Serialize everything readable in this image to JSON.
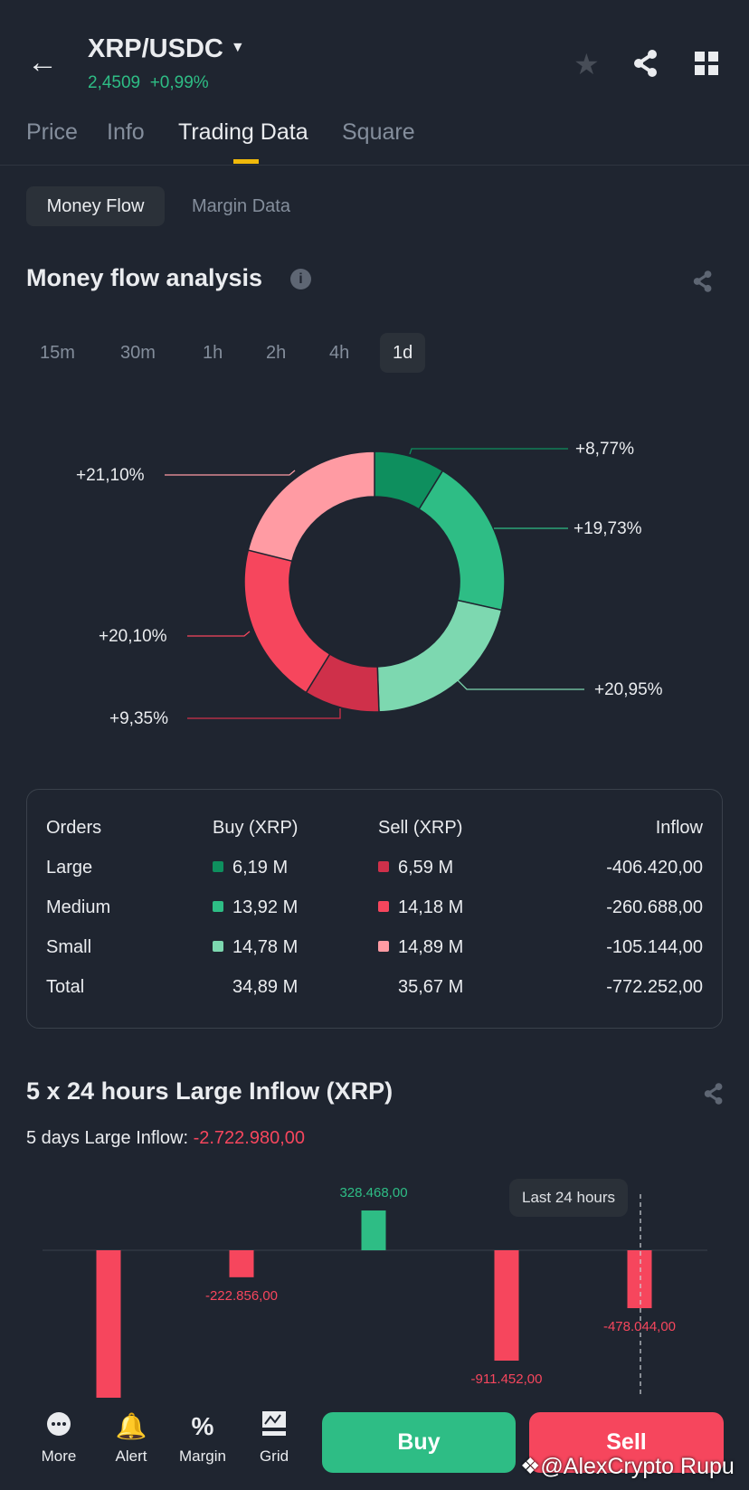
{
  "header": {
    "pair": "XRP/USDC",
    "price": "2,4509",
    "change": "+0,99%"
  },
  "tabs": [
    {
      "label": "Price"
    },
    {
      "label": "Info"
    },
    {
      "label": "Trading Data"
    },
    {
      "label": "Square"
    }
  ],
  "subtabs": [
    {
      "label": "Money Flow"
    },
    {
      "label": "Margin Data"
    }
  ],
  "analysis": {
    "title": "Money flow analysis",
    "intervals": [
      "15m",
      "30m",
      "1h",
      "2h",
      "4h",
      "1d"
    ],
    "active_interval": "1d"
  },
  "chart_data": [
    {
      "type": "pie",
      "donut": true,
      "categories": [
        "Large buy",
        "Medium buy",
        "Small buy",
        "Large sell",
        "Medium sell",
        "Small sell"
      ],
      "values": [
        8.77,
        19.73,
        20.95,
        9.35,
        20.1,
        21.1
      ],
      "labels": [
        "+8,77%",
        "+19,73%",
        "+20,95%",
        "+9,35%",
        "+20,10%",
        "+21,10%"
      ],
      "colors": [
        "#0e8f5e",
        "#2ebd85",
        "#7dd8b0",
        "#cf304a",
        "#f6465d",
        "#ff9ba3"
      ]
    },
    {
      "type": "bar",
      "title": "5 x 24 hours Large Inflow (XRP)",
      "values": [
        -1439096,
        -222856,
        328468,
        -911452,
        -478044
      ],
      "value_labels": [
        "",
        "-222.856,00",
        "328.468,00",
        "-911.452,00",
        "-478.044,00"
      ],
      "positive_color": "#2ebd85",
      "negative_color": "#f6465d",
      "tooltip": "Last 24 hours"
    }
  ],
  "table": {
    "headers": [
      "Orders",
      "Buy (XRP)",
      "Sell (XRP)",
      "Inflow"
    ],
    "rows": [
      {
        "order": "Large",
        "buy": "6,19 M",
        "sell": "6,59 M",
        "inflow": "-406.420,00",
        "buy_color": "#0e8f5e",
        "sell_color": "#cf304a"
      },
      {
        "order": "Medium",
        "buy": "13,92 M",
        "sell": "14,18 M",
        "inflow": "-260.688,00",
        "buy_color": "#2ebd85",
        "sell_color": "#f6465d"
      },
      {
        "order": "Small",
        "buy": "14,78 M",
        "sell": "14,89 M",
        "inflow": "-105.144,00",
        "buy_color": "#7dd8b0",
        "sell_color": "#ff9ba3"
      },
      {
        "order": "Total",
        "buy": "34,89 M",
        "sell": "35,67 M",
        "inflow": "-772.252,00"
      }
    ]
  },
  "large_inflow": {
    "title": "5 x 24 hours Large Inflow (XRP)",
    "subtitle_label": "5 days Large Inflow:",
    "subtitle_value": "-2.722.980,00"
  },
  "bottom_nav": {
    "items": [
      "More",
      "Alert",
      "Margin",
      "Grid"
    ],
    "buy": "Buy",
    "sell": "Sell"
  },
  "watermark": "@AlexCrypto Rupu"
}
